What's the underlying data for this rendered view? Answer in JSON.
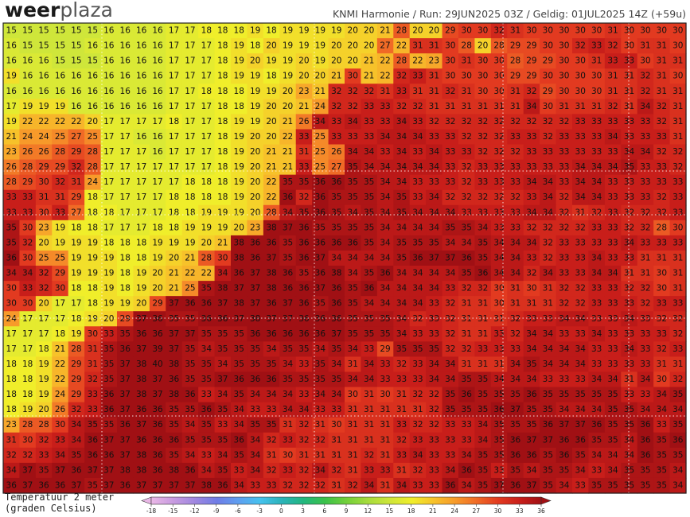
{
  "header": {
    "logo": {
      "bold": "weer",
      "light": "plaza"
    },
    "model_info": "KNMI Harmonie / Run: 29JUN2025 03Z / Geldig: 01JUL2025 14Z (+59u)"
  },
  "map": {
    "values": [
      [
        15,
        15,
        15,
        15,
        15,
        15,
        16,
        16,
        16,
        16,
        17,
        17,
        18,
        18,
        18,
        19,
        18,
        19,
        19,
        19,
        19,
        20,
        20,
        21,
        28,
        20,
        20,
        29,
        30,
        30,
        32,
        31,
        30,
        30,
        30,
        30,
        30,
        31,
        30,
        30,
        30,
        30
      ],
      [
        16,
        15,
        15,
        15,
        15,
        16,
        16,
        16,
        16,
        16,
        17,
        17,
        17,
        18,
        19,
        18,
        20,
        19,
        19,
        19,
        20,
        20,
        20,
        27,
        22,
        31,
        31,
        30,
        28,
        20,
        28,
        29,
        29,
        30,
        30,
        32,
        33,
        32,
        30,
        31,
        31,
        30
      ],
      [
        16,
        16,
        16,
        15,
        15,
        15,
        16,
        16,
        16,
        16,
        17,
        17,
        17,
        18,
        19,
        20,
        19,
        19,
        20,
        19,
        20,
        20,
        21,
        22,
        28,
        22,
        23,
        30,
        31,
        30,
        30,
        28,
        29,
        29,
        30,
        30,
        31,
        33,
        33,
        30,
        31,
        31
      ],
      [
        19,
        16,
        16,
        16,
        16,
        16,
        16,
        16,
        16,
        16,
        17,
        17,
        17,
        18,
        19,
        19,
        18,
        19,
        20,
        20,
        21,
        30,
        21,
        22,
        32,
        33,
        31,
        30,
        30,
        30,
        30,
        29,
        29,
        30,
        30,
        30,
        30,
        31,
        31,
        32,
        31,
        30
      ],
      [
        16,
        16,
        16,
        16,
        16,
        16,
        16,
        16,
        16,
        16,
        17,
        17,
        18,
        18,
        18,
        19,
        19,
        20,
        23,
        21,
        32,
        32,
        32,
        31,
        33,
        31,
        31,
        32,
        31,
        30,
        30,
        31,
        32,
        29,
        30,
        30,
        30,
        31,
        31,
        32,
        31,
        31
      ],
      [
        17,
        19,
        19,
        19,
        16,
        16,
        16,
        16,
        16,
        16,
        17,
        17,
        17,
        18,
        18,
        19,
        20,
        20,
        21,
        24,
        32,
        32,
        33,
        33,
        32,
        32,
        31,
        31,
        31,
        31,
        31,
        31,
        34,
        30,
        31,
        31,
        31,
        32,
        31,
        34,
        32,
        31
      ],
      [
        19,
        22,
        22,
        22,
        22,
        20,
        17,
        17,
        17,
        17,
        18,
        17,
        17,
        18,
        19,
        19,
        20,
        21,
        26,
        34,
        33,
        34,
        33,
        33,
        34,
        33,
        32,
        32,
        32,
        32,
        32,
        32,
        32,
        32,
        32,
        33,
        33,
        33,
        33,
        33,
        32,
        31
      ],
      [
        21,
        24,
        24,
        25,
        27,
        25,
        17,
        17,
        16,
        16,
        17,
        17,
        17,
        18,
        19,
        20,
        20,
        22,
        33,
        25,
        33,
        33,
        33,
        34,
        34,
        34,
        33,
        33,
        32,
        32,
        32,
        33,
        33,
        32,
        33,
        33,
        33,
        34,
        33,
        33,
        33,
        31
      ],
      [
        23,
        26,
        26,
        28,
        29,
        28,
        17,
        17,
        17,
        16,
        17,
        17,
        17,
        18,
        19,
        20,
        21,
        21,
        31,
        25,
        26,
        34,
        34,
        33,
        34,
        33,
        34,
        33,
        33,
        32,
        32,
        32,
        33,
        33,
        33,
        33,
        33,
        33,
        34,
        34,
        32,
        32
      ],
      [
        26,
        28,
        29,
        29,
        32,
        28,
        17,
        17,
        17,
        17,
        17,
        17,
        17,
        18,
        19,
        20,
        21,
        21,
        33,
        25,
        27,
        35,
        34,
        34,
        34,
        34,
        34,
        33,
        32,
        33,
        33,
        33,
        33,
        33,
        33,
        34,
        34,
        34,
        35,
        33,
        33,
        32
      ],
      [
        28,
        29,
        30,
        32,
        31,
        24,
        17,
        17,
        17,
        17,
        17,
        18,
        18,
        18,
        19,
        20,
        22,
        35,
        35,
        36,
        36,
        35,
        35,
        34,
        34,
        33,
        33,
        33,
        32,
        33,
        33,
        33,
        34,
        34,
        33,
        34,
        34,
        33,
        33,
        33,
        33,
        33
      ],
      [
        33,
        33,
        31,
        31,
        29,
        18,
        17,
        17,
        17,
        17,
        18,
        18,
        18,
        18,
        19,
        20,
        22,
        36,
        32,
        36,
        35,
        35,
        35,
        34,
        35,
        33,
        34,
        32,
        32,
        32,
        32,
        32,
        33,
        34,
        32,
        34,
        34,
        33,
        33,
        33,
        32,
        33
      ],
      [
        33,
        33,
        30,
        33,
        27,
        18,
        18,
        17,
        17,
        17,
        18,
        18,
        19,
        19,
        19,
        20,
        28,
        34,
        35,
        36,
        35,
        34,
        35,
        34,
        35,
        34,
        34,
        34,
        33,
        33,
        33,
        33,
        34,
        34,
        32,
        31,
        32,
        33,
        32,
        32,
        32,
        33
      ],
      [
        35,
        30,
        23,
        19,
        18,
        18,
        17,
        17,
        17,
        18,
        18,
        19,
        19,
        19,
        20,
        23,
        38,
        37,
        36,
        35,
        35,
        35,
        35,
        34,
        34,
        34,
        34,
        35,
        35,
        34,
        33,
        33,
        32,
        32,
        32,
        32,
        33,
        33,
        32,
        32,
        28,
        30
      ],
      [
        35,
        32,
        20,
        19,
        19,
        19,
        18,
        18,
        18,
        19,
        19,
        19,
        20,
        21,
        38,
        36,
        36,
        35,
        36,
        36,
        36,
        36,
        35,
        34,
        35,
        35,
        35,
        34,
        34,
        35,
        34,
        34,
        34,
        32,
        33,
        33,
        33,
        33,
        34,
        33,
        33,
        33
      ],
      [
        36,
        30,
        25,
        25,
        19,
        19,
        19,
        18,
        18,
        19,
        20,
        21,
        28,
        30,
        38,
        36,
        37,
        35,
        36,
        37,
        34,
        34,
        34,
        34,
        35,
        36,
        37,
        37,
        36,
        35,
        34,
        34,
        33,
        32,
        33,
        33,
        34,
        33,
        33,
        31,
        31,
        31
      ],
      [
        34,
        34,
        32,
        29,
        19,
        19,
        19,
        18,
        19,
        20,
        21,
        22,
        22,
        34,
        36,
        37,
        38,
        36,
        35,
        36,
        38,
        34,
        35,
        36,
        34,
        34,
        34,
        34,
        35,
        36,
        34,
        34,
        32,
        34,
        33,
        33,
        34,
        34,
        31,
        31,
        30,
        31
      ],
      [
        30,
        33,
        32,
        30,
        18,
        18,
        19,
        18,
        19,
        20,
        21,
        25,
        35,
        38,
        37,
        37,
        38,
        36,
        36,
        37,
        36,
        35,
        36,
        34,
        34,
        34,
        34,
        33,
        32,
        32,
        30,
        31,
        30,
        31,
        32,
        32,
        33,
        33,
        32,
        32,
        30,
        31
      ],
      [
        30,
        30,
        20,
        17,
        17,
        18,
        19,
        19,
        20,
        29,
        37,
        36,
        36,
        37,
        38,
        37,
        36,
        37,
        36,
        35,
        36,
        35,
        34,
        34,
        34,
        34,
        33,
        32,
        31,
        31,
        30,
        31,
        31,
        31,
        32,
        32,
        33,
        33,
        33,
        32,
        33,
        33
      ],
      [
        24,
        17,
        17,
        17,
        18,
        19,
        20,
        29,
        37,
        36,
        35,
        35,
        36,
        36,
        37,
        38,
        37,
        37,
        36,
        36,
        36,
        35,
        35,
        35,
        34,
        32,
        33,
        32,
        31,
        31,
        31,
        32,
        33,
        33,
        34,
        34,
        33,
        33,
        34,
        33,
        32,
        32
      ],
      [
        17,
        17,
        17,
        18,
        19,
        30,
        33,
        35,
        36,
        36,
        37,
        37,
        35,
        35,
        35,
        36,
        36,
        36,
        36,
        36,
        37,
        35,
        35,
        35,
        34,
        33,
        33,
        32,
        31,
        31,
        33,
        32,
        34,
        34,
        33,
        33,
        34,
        33,
        33,
        33,
        33,
        32
      ],
      [
        17,
        17,
        18,
        21,
        28,
        31,
        35,
        36,
        37,
        39,
        37,
        35,
        34,
        35,
        35,
        35,
        34,
        35,
        35,
        34,
        35,
        34,
        33,
        29,
        35,
        35,
        35,
        32,
        32,
        33,
        33,
        33,
        34,
        34,
        34,
        34,
        33,
        33,
        34,
        33,
        32,
        33
      ],
      [
        18,
        18,
        19,
        22,
        29,
        31,
        35,
        37,
        38,
        40,
        38,
        35,
        35,
        34,
        35,
        35,
        35,
        34,
        33,
        35,
        34,
        31,
        34,
        33,
        32,
        33,
        34,
        34,
        31,
        31,
        31,
        34,
        35,
        34,
        34,
        34,
        33,
        33,
        33,
        33,
        31,
        31
      ],
      [
        18,
        18,
        19,
        22,
        29,
        32,
        35,
        37,
        38,
        37,
        36,
        35,
        35,
        37,
        36,
        36,
        36,
        35,
        35,
        35,
        35,
        34,
        34,
        33,
        33,
        33,
        34,
        34,
        35,
        35,
        34,
        34,
        34,
        33,
        33,
        33,
        34,
        34,
        31,
        34,
        30,
        32
      ],
      [
        18,
        18,
        19,
        24,
        29,
        33,
        36,
        37,
        38,
        37,
        38,
        36,
        33,
        34,
        35,
        34,
        34,
        34,
        33,
        34,
        34,
        30,
        31,
        30,
        31,
        32,
        32,
        35,
        36,
        35,
        35,
        35,
        36,
        35,
        35,
        35,
        35,
        35,
        33,
        33,
        34,
        35
      ],
      [
        18,
        19,
        20,
        26,
        32,
        33,
        36,
        37,
        36,
        36,
        35,
        35,
        36,
        35,
        34,
        33,
        33,
        34,
        34,
        33,
        33,
        31,
        31,
        31,
        31,
        31,
        32,
        35,
        35,
        35,
        36,
        37,
        35,
        35,
        34,
        34,
        34,
        35,
        35,
        34,
        34,
        34
      ],
      [
        23,
        28,
        28,
        30,
        34,
        35,
        35,
        36,
        37,
        36,
        35,
        34,
        35,
        33,
        34,
        35,
        35,
        31,
        32,
        31,
        30,
        31,
        31,
        31,
        33,
        32,
        32,
        33,
        33,
        34,
        35,
        35,
        35,
        36,
        37,
        37,
        36,
        35,
        35,
        36,
        33,
        35
      ],
      [
        31,
        30,
        32,
        33,
        34,
        36,
        37,
        37,
        36,
        36,
        36,
        35,
        35,
        35,
        36,
        34,
        32,
        33,
        32,
        32,
        31,
        31,
        31,
        31,
        32,
        33,
        33,
        33,
        33,
        34,
        35,
        36,
        37,
        37,
        36,
        36,
        35,
        35,
        34,
        36,
        35,
        36
      ],
      [
        32,
        32,
        33,
        34,
        35,
        36,
        36,
        37,
        38,
        36,
        35,
        34,
        33,
        34,
        35,
        34,
        31,
        30,
        31,
        31,
        31,
        31,
        32,
        31,
        33,
        34,
        33,
        33,
        34,
        35,
        35,
        36,
        36,
        35,
        36,
        35,
        34,
        34,
        34,
        36,
        35,
        35
      ],
      [
        34,
        37,
        35,
        37,
        36,
        37,
        37,
        38,
        38,
        36,
        38,
        36,
        34,
        35,
        33,
        34,
        32,
        33,
        32,
        34,
        32,
        31,
        33,
        33,
        31,
        32,
        33,
        34,
        36,
        35,
        33,
        35,
        34,
        35,
        35,
        34,
        33,
        34,
        35,
        35,
        35,
        34
      ],
      [
        36,
        37,
        36,
        36,
        37,
        35,
        37,
        36,
        37,
        37,
        37,
        37,
        38,
        36,
        34,
        33,
        33,
        32,
        32,
        32,
        31,
        32,
        34,
        31,
        34,
        33,
        33,
        36,
        34,
        35,
        37,
        36,
        37,
        35,
        34,
        33,
        35,
        35,
        35,
        35,
        35,
        34
      ]
    ]
  },
  "legend": {
    "title": "Temperatuur 2 meter",
    "unit": "(graden Celsius)",
    "ticks": [
      -18,
      -15,
      -12,
      -9,
      -6,
      -3,
      0,
      3,
      6,
      9,
      12,
      15,
      18,
      21,
      24,
      27,
      30,
      33,
      36
    ],
    "colors": [
      "#e9b7e6",
      "#c79be0",
      "#9f87e0",
      "#6f7de6",
      "#5e9ff0",
      "#46c2ee",
      "#2bb3b9",
      "#22b77e",
      "#3cc24a",
      "#73d03a",
      "#a8dc3c",
      "#cfe63a",
      "#f0ee2a",
      "#f7c22a",
      "#f79a2a",
      "#f06a26",
      "#e23a20",
      "#c81e1a",
      "#a01014"
    ]
  }
}
